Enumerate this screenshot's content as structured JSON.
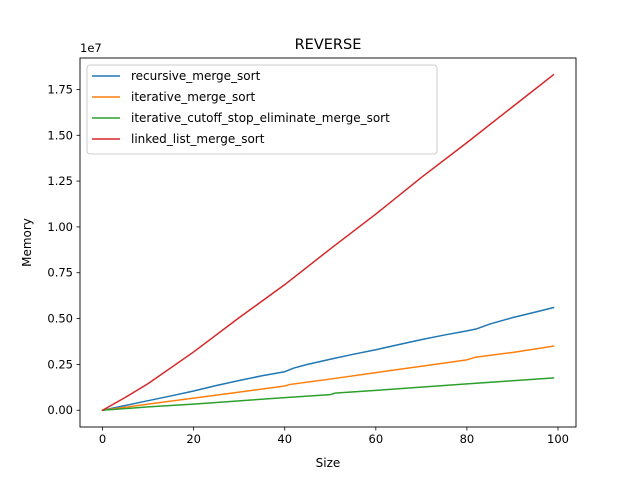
{
  "chart_data": {
    "type": "line",
    "title": "REVERSE",
    "xlabel": "Size",
    "ylabel": "Memory",
    "y_offset_label": "1e7",
    "y_scale": 10000000,
    "xlim": [
      -4.95,
      103.95
    ],
    "ylim": [
      -915000,
      19215000
    ],
    "x_ticks": [
      0,
      20,
      40,
      60,
      80,
      100
    ],
    "x_tick_labels": [
      "0",
      "20",
      "40",
      "60",
      "80",
      "100"
    ],
    "y_ticks": [
      0,
      2500000,
      5000000,
      7500000,
      10000000,
      12500000,
      15000000,
      17500000
    ],
    "y_tick_labels": [
      "0.00",
      "0.25",
      "0.50",
      "0.75",
      "1.00",
      "1.25",
      "1.50",
      "1.75"
    ],
    "grid": false,
    "legend_position": "upper-left",
    "series": [
      {
        "name": "recursive_merge_sort",
        "color": "#1f77b4",
        "x": [
          0,
          5,
          10,
          15,
          20,
          25,
          30,
          35,
          40,
          42,
          45,
          50,
          55,
          60,
          65,
          70,
          75,
          80,
          82,
          85,
          90,
          95,
          99
        ],
        "y": [
          0,
          260000,
          520000,
          780000,
          1050000,
          1350000,
          1620000,
          1880000,
          2100000,
          2300000,
          2500000,
          2780000,
          3050000,
          3300000,
          3580000,
          3850000,
          4100000,
          4330000,
          4430000,
          4700000,
          5050000,
          5350000,
          5600000
        ]
      },
      {
        "name": "iterative_merge_sort",
        "color": "#ff7f0e",
        "x": [
          0,
          10,
          20,
          30,
          40,
          41,
          50,
          60,
          70,
          80,
          82,
          90,
          99
        ],
        "y": [
          0,
          330000,
          660000,
          990000,
          1320000,
          1400000,
          1700000,
          2050000,
          2400000,
          2750000,
          2900000,
          3150000,
          3500000
        ]
      },
      {
        "name": "iterative_cutoff_stop_eliminate_merge_sort",
        "color": "#2ca02c",
        "x": [
          0,
          10,
          20,
          25,
          30,
          40,
          50,
          51,
          60,
          70,
          80,
          90,
          99
        ],
        "y": [
          0,
          180000,
          330000,
          420000,
          510000,
          690000,
          850000,
          930000,
          1080000,
          1260000,
          1440000,
          1610000,
          1760000
        ]
      },
      {
        "name": "linked_list_merge_sort",
        "color": "#d62728",
        "x": [
          0,
          5,
          10,
          20,
          30,
          40,
          50,
          60,
          70,
          80,
          90,
          99
        ],
        "y": [
          0,
          700000,
          1450000,
          3180000,
          5050000,
          6850000,
          8800000,
          10700000,
          12700000,
          14600000,
          16550000,
          18300000
        ]
      }
    ]
  }
}
